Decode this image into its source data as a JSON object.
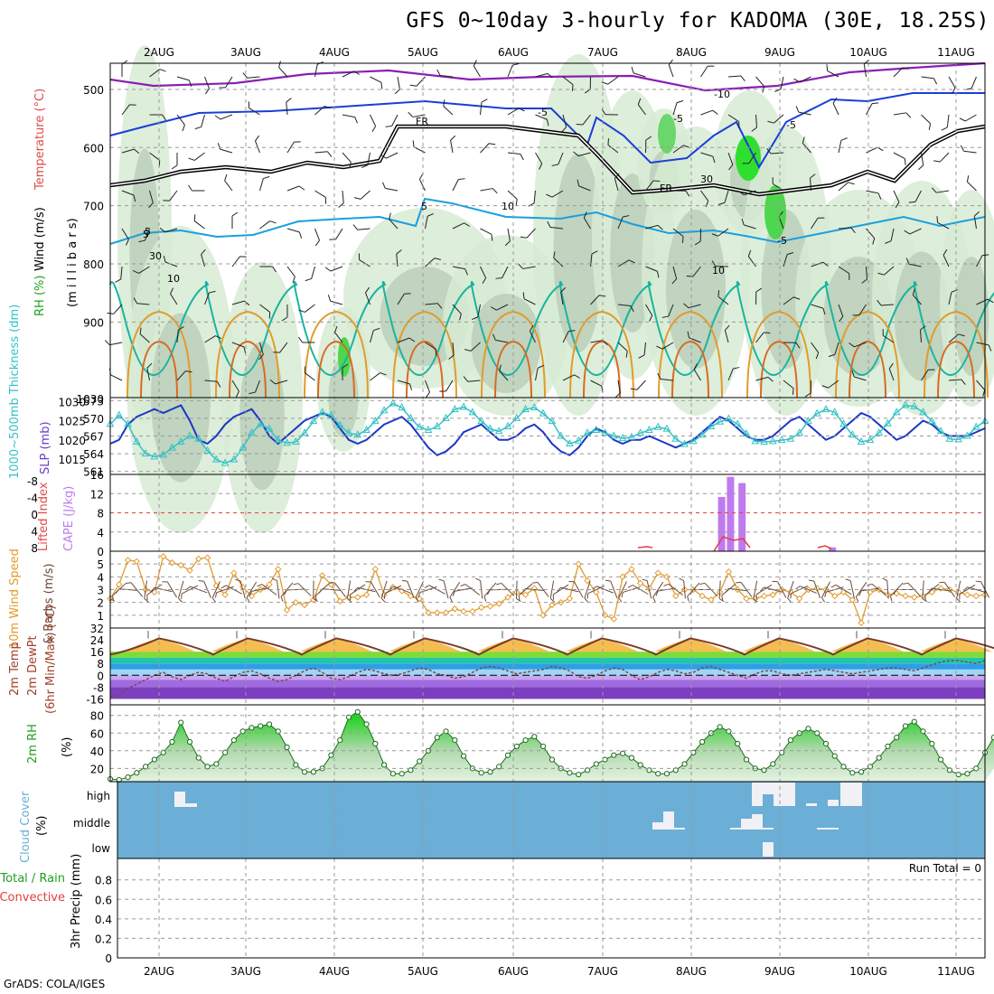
{
  "title": "GFS 0~10day 3-hourly for KADOMA (30E, 18.25S)",
  "footer": "GrADS: COLA/IGES",
  "colors": {
    "frame": "#000000",
    "grid": "#9a9a9a",
    "wind_purple": "#8a1fb5",
    "wind_blue": "#1a3fd6",
    "temp_cyan": "#1a9fe0",
    "temp_teal": "#17b4a0",
    "temp_orange": "#e39a2a",
    "slp": "#1b36c4",
    "thickness": "#32c2c8",
    "cape": "#c07af0",
    "lifted": "#e04040",
    "wind10": "#e39a2a",
    "rh2m": "#1fa01f",
    "cloud_bg": "#6baed6",
    "cloud_fill": "#f0f0f5"
  },
  "chart_data": {
    "type": "meteogram",
    "x_dates": [
      "2AUG",
      "3AUG",
      "4AUG",
      "5AUG",
      "6AUG",
      "7AUG",
      "8AUG",
      "9AUG",
      "10AUG",
      "11AUG"
    ],
    "panels": [
      {
        "id": "upper_air",
        "ylabels": [
          "Wind (m/s)",
          "Temperature (°C)",
          "RH (%)"
        ],
        "axis_label": "(m i l l i b a r s)",
        "yticks": [
          "500",
          "600",
          "700",
          "800",
          "900"
        ],
        "contour_labels": [
          "-10",
          "-5",
          "-5",
          "5",
          "5",
          "-5",
          "10",
          "FR",
          "FR",
          "10",
          "30",
          "30",
          "10",
          "-5",
          "5"
        ]
      },
      {
        "id": "slp_thickness",
        "ylabels": [
          "1000~500mb Thickness (dm)",
          "SLP (mb)"
        ],
        "left_ticks": [
          "573",
          "570",
          "567",
          "564",
          "561"
        ],
        "right_ticks": [
          "1030",
          "1025",
          "1020",
          "1015"
        ],
        "slp": [
          1019,
          1020,
          1024,
          1026,
          1027,
          1028,
          1027,
          1028,
          1029,
          1025,
          1020,
          1019,
          1021,
          1024,
          1026,
          1027,
          1028,
          1025,
          1021,
          1019,
          1021,
          1023,
          1025,
          1026,
          1027,
          1026,
          1023,
          1020,
          1019,
          1020,
          1022,
          1024,
          1025,
          1026,
          1024,
          1021,
          1018,
          1016,
          1017,
          1019,
          1022,
          1023,
          1024,
          1022,
          1020,
          1020,
          1021,
          1023,
          1024,
          1022,
          1019,
          1017,
          1016,
          1018,
          1021,
          1023,
          1022,
          1020,
          1019,
          1020,
          1020,
          1021,
          1020,
          1019,
          1018,
          1019,
          1020,
          1022,
          1024,
          1026,
          1025,
          1023,
          1021,
          1020,
          1020,
          1021,
          1023,
          1025,
          1026,
          1024,
          1022,
          1020,
          1021,
          1023,
          1025,
          1027,
          1026,
          1024,
          1022,
          1020,
          1021,
          1023,
          1025,
          1024,
          1022,
          1021,
          1021,
          1021,
          1022,
          1023
        ],
        "thickness": [
          569,
          570.5,
          569,
          566,
          564,
          563.5,
          563.8,
          565,
          566,
          567,
          566.5,
          564.5,
          563,
          562.4,
          563,
          565,
          567.5,
          569,
          568.2,
          566.3,
          565.8,
          566,
          567.5,
          569.5,
          571,
          570.5,
          568.8,
          567.5,
          567.2,
          568,
          569.5,
          571.3,
          572.5,
          571.8,
          570,
          568.5,
          568,
          568.6,
          570,
          571.5,
          571.9,
          571,
          569.5,
          568.2,
          567.8,
          568.6,
          570,
          571.5,
          571.8,
          570.8,
          569.5,
          567,
          565.7,
          566.2,
          567.5,
          568,
          567.5,
          567,
          566.6,
          566.8,
          567.5,
          568,
          568.5,
          568.2,
          566.5,
          565.6,
          566.1,
          567.2,
          568.6,
          569.4,
          569.9,
          569,
          567.4,
          566.1,
          566,
          566.1,
          566.3,
          566.5,
          567.5,
          569.5,
          570.8,
          571.5,
          571,
          569,
          567.2,
          566,
          566.3,
          567.5,
          569.1,
          571,
          572.2,
          572,
          571,
          569.5,
          567.8,
          566.5,
          566.4,
          567,
          568.5,
          569.5
        ]
      },
      {
        "id": "cape_li",
        "ylabels": [
          "Lifted Index",
          "CAPE (J/kg)"
        ],
        "left_ticks": [
          "-8",
          "-4",
          "0",
          "4",
          "8"
        ],
        "right_ticks": [
          "16",
          "12",
          "8",
          "4",
          "0"
        ],
        "cape_bars": [
          {
            "day": 6.35,
            "value": 11.3
          },
          {
            "day": 6.45,
            "value": 15.5
          },
          {
            "day": 6.58,
            "value": 14.2
          },
          {
            "day": 7.6,
            "value": 0.8
          }
        ]
      },
      {
        "id": "wind10m",
        "ylabels": [
          "10m Wind Speed",
          "& Barbs (m/s)"
        ],
        "yticks": [
          "5",
          "4",
          "3",
          "2",
          "1"
        ],
        "speed": [
          2.3,
          3.4,
          5.3,
          5.2,
          3.0,
          2.8,
          5.6,
          5.1,
          4.9,
          4.5,
          5.4,
          5.5,
          3.3,
          2.6,
          4.3,
          3.2,
          2.5,
          3.0,
          3.4,
          4.6,
          1.4,
          2.0,
          1.8,
          2.2,
          4.1,
          3.4,
          2.1,
          2.4,
          2.4,
          2.6,
          4.6,
          2.6,
          3.2,
          2.9,
          2.5,
          2.3,
          1.2,
          1.2,
          1.2,
          1.5,
          1.3,
          1.3,
          1.6,
          1.7,
          1.9,
          2.4,
          2.8,
          2.6,
          3.1,
          1.0,
          1.8,
          2.0,
          2.3,
          5.0,
          3.7,
          2.8,
          1.0,
          0.7,
          4.0,
          4.6,
          3.5,
          3.1,
          4.3,
          4.0,
          2.5,
          3.0,
          3.0,
          2.5,
          2.2,
          2.8,
          4.4,
          3.0,
          2.3,
          2.3,
          2.5,
          2.6,
          3.0,
          2.8,
          2.3,
          3.0,
          3.1,
          3.0,
          2.5,
          2.8,
          2.2,
          0.4,
          2.8,
          3.0,
          2.6,
          2.7,
          2.5,
          2.4,
          2.5,
          2.8,
          3.1,
          3.0,
          2.8,
          2.6,
          2.5,
          2.6
        ]
      },
      {
        "id": "temp2m",
        "ylabels": [
          "2m Temp",
          "2m DewPt",
          "(6hr Min/Max) (°C)"
        ],
        "yticks": [
          "32",
          "24",
          "16",
          "8",
          "0",
          "-8",
          "-16"
        ],
        "temp_max": [
          25,
          25,
          25,
          25,
          25,
          25,
          25,
          25,
          25,
          25
        ],
        "dew": [
          -15,
          -13,
          -9,
          -6,
          -3,
          0,
          2,
          -1,
          -3,
          0,
          2,
          1,
          -2,
          -4,
          -1,
          2,
          3,
          1,
          -2,
          -4,
          -3,
          0,
          3,
          5,
          2,
          -2,
          -3,
          -1,
          2,
          4,
          3,
          1,
          0,
          1,
          3,
          5,
          4,
          1,
          0,
          -2,
          -1,
          2,
          5,
          6,
          5,
          3,
          1,
          2,
          3,
          4,
          6,
          5,
          3,
          -1,
          -2,
          0,
          3,
          5,
          4,
          0,
          -3,
          -1,
          2,
          4,
          3,
          1,
          2,
          5,
          6,
          4,
          2,
          0,
          -2,
          1,
          3,
          3,
          1,
          0,
          1,
          2,
          3,
          4,
          3,
          2,
          1,
          2,
          3,
          4,
          5,
          5,
          4,
          3,
          5,
          7,
          9,
          10,
          10,
          9,
          8,
          10
        ]
      },
      {
        "id": "rh2m",
        "ylabels": [
          "2m RH",
          "(%)"
        ],
        "yticks": [
          "80",
          "60",
          "40",
          "20"
        ],
        "rh": [
          8,
          7,
          10,
          15,
          22,
          30,
          38,
          50,
          72,
          50,
          32,
          22,
          25,
          38,
          52,
          62,
          66,
          68,
          70,
          62,
          44,
          24,
          16,
          16,
          20,
          35,
          52,
          78,
          84,
          70,
          48,
          24,
          14,
          14,
          18,
          28,
          40,
          55,
          62,
          52,
          34,
          20,
          15,
          16,
          22,
          35,
          45,
          52,
          56,
          45,
          30,
          20,
          15,
          13,
          18,
          25,
          30,
          35,
          37,
          32,
          24,
          18,
          14,
          14,
          18,
          25,
          38,
          50,
          60,
          67,
          62,
          48,
          30,
          20,
          18,
          25,
          38,
          52,
          60,
          65,
          60,
          48,
          34,
          22,
          15,
          16,
          22,
          32,
          45,
          55,
          68,
          73,
          62,
          48,
          30,
          18,
          13,
          14,
          20,
          38,
          55,
          72,
          80,
          65
        ]
      },
      {
        "id": "cloud_cover",
        "ylabels": [
          "Cloud Cover",
          "(%)"
        ],
        "rows": [
          "high",
          "middle",
          "low"
        ]
      },
      {
        "id": "precip",
        "ylabels": [
          "Total / Rain",
          "Convective",
          "3hr Precip (mm)"
        ],
        "yticks": [
          "0.8",
          "0.6",
          "0.4",
          "0.2",
          "0"
        ],
        "run_total": "Run Total = 0"
      }
    ]
  }
}
